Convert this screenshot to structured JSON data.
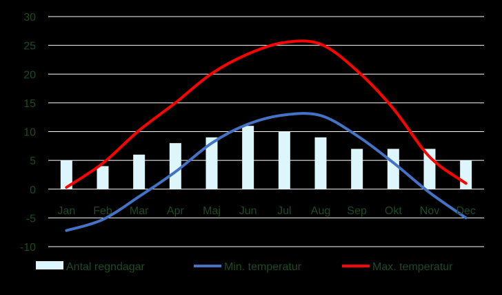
{
  "chart_data": {
    "type": "bar+line",
    "categories": [
      "Jan",
      "Feb",
      "Mar",
      "Apr",
      "Maj",
      "Jun",
      "Jul",
      "Aug",
      "Sep",
      "Okt",
      "Nov",
      "Dec"
    ],
    "series": [
      {
        "name": "Antal regndagar",
        "type": "bar",
        "color": "#ddf6fb",
        "values": [
          5,
          4,
          6,
          8,
          9,
          11,
          10,
          9,
          7,
          7,
          7,
          5
        ]
      },
      {
        "name": "Min. temperatur",
        "type": "line",
        "color": "#4472c4",
        "values": [
          -7.2,
          -5.3,
          -1.3,
          3.0,
          8.0,
          11.3,
          12.9,
          12.8,
          9.3,
          4.6,
          -0.6,
          -5.0
        ]
      },
      {
        "name": "Max. temperatur",
        "type": "line",
        "color": "#ff0000",
        "values": [
          0.3,
          4.5,
          10.2,
          15.0,
          20.1,
          23.5,
          25.5,
          25.2,
          20.6,
          14.0,
          5.6,
          1.0
        ]
      }
    ],
    "yticks": [
      "-10",
      "-5",
      "0",
      "5",
      "10",
      "15",
      "20",
      "25",
      "30"
    ],
    "ylim": [
      -10,
      30
    ],
    "grid": true,
    "legend": "bottom",
    "colors": {
      "background": "#000000",
      "text": "#1e4a22",
      "grid": "#ffffff"
    }
  }
}
